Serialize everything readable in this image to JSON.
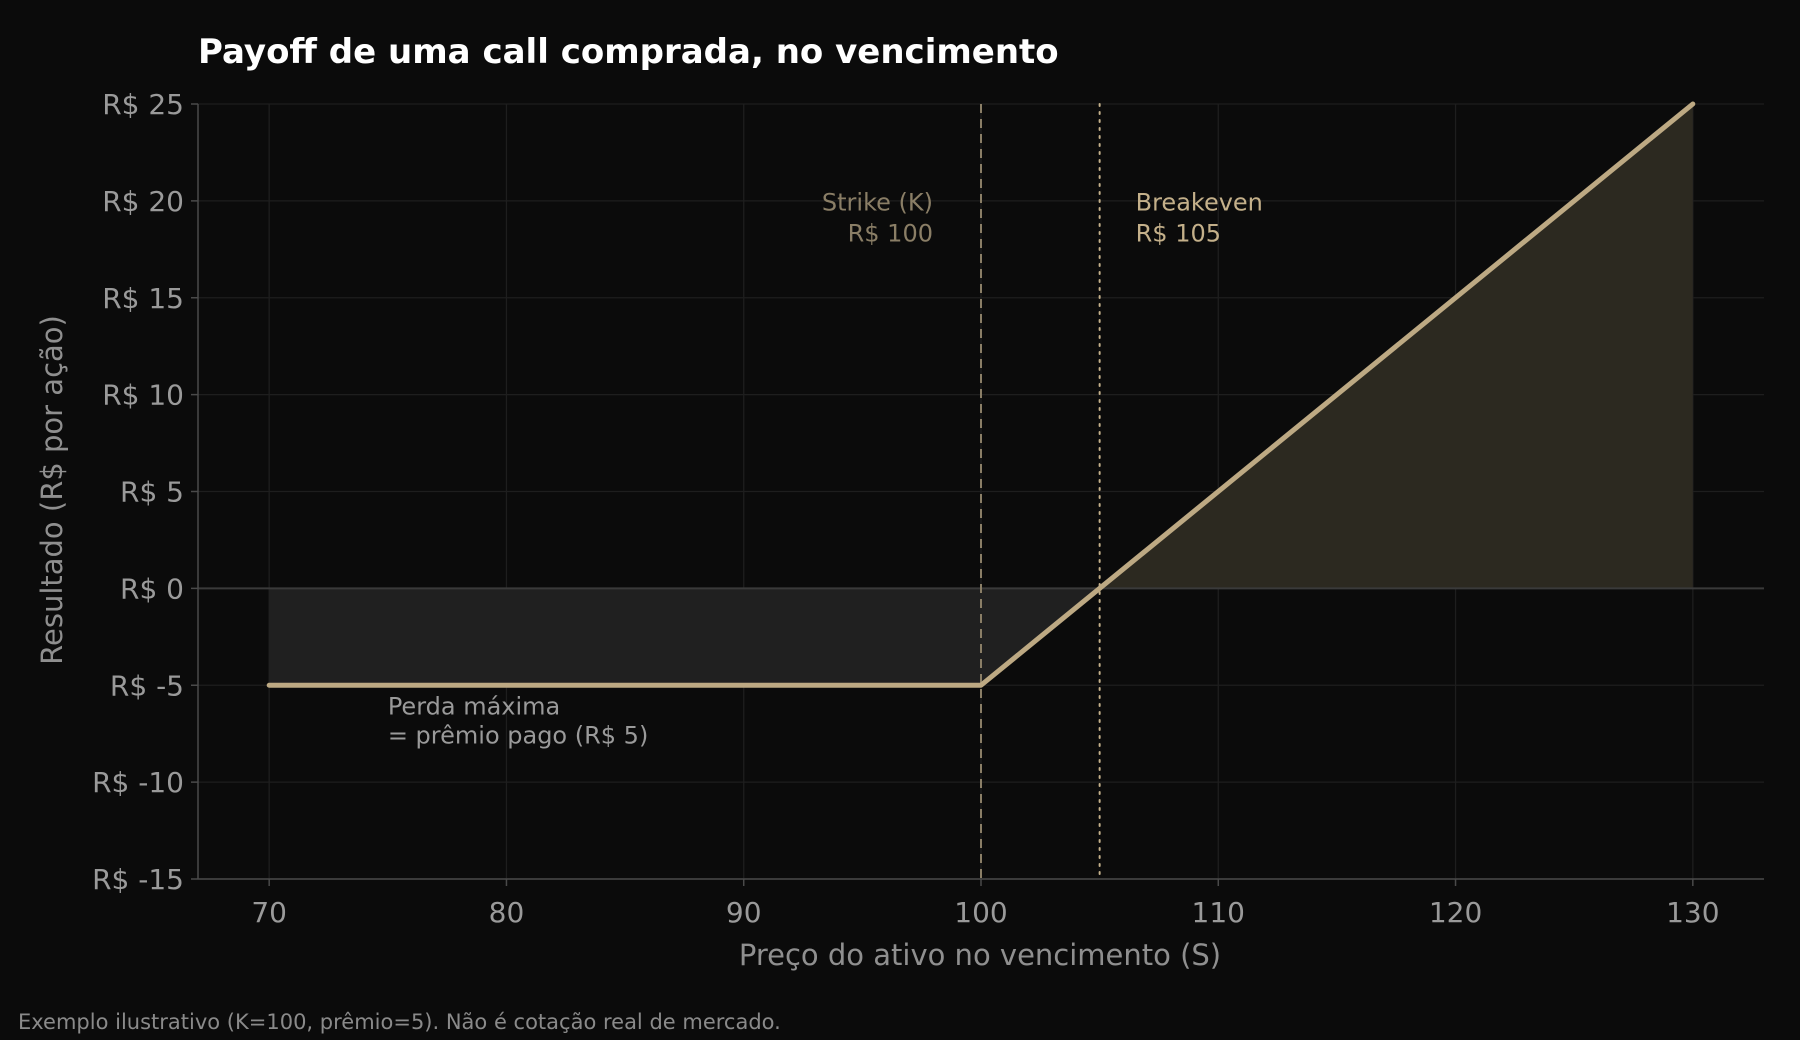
{
  "chart_data": {
    "type": "line",
    "title": "Payoff de uma call comprada, no vencimento",
    "xlabel": "Preço do ativo no vencimento (S)",
    "ylabel": "Resultado (R$ por ação)",
    "xlim": [
      67,
      133
    ],
    "ylim": [
      -15,
      25
    ],
    "x_ticks": [
      70,
      80,
      90,
      100,
      110,
      120,
      130
    ],
    "y_ticks": [
      -15,
      -10,
      -5,
      0,
      5,
      10,
      15,
      20,
      25
    ],
    "y_tick_labels": [
      "R$ -15",
      "R$ -10",
      "R$ -5",
      "R$ 0",
      "R$ 5",
      "R$ 10",
      "R$ 15",
      "R$ 20",
      "R$ 25"
    ],
    "grid": true,
    "series": [
      {
        "x": [
          70,
          100,
          130
        ],
        "y": [
          -5,
          -5,
          25
        ]
      }
    ],
    "strike": {
      "x": 100,
      "label_line1": "Strike (K)",
      "label_line2": "R$ 100"
    },
    "breakeven": {
      "x": 105,
      "label_line1": "Breakeven",
      "label_line2": "R$ 105"
    },
    "loss_annotation": {
      "line1": "Perda máxima",
      "line2": "= prêmio pago (R$ 5)"
    },
    "footnote": "Exemplo ilustrativo (K=100, prêmio=5). Não é cotação real de mercado.",
    "colors": {
      "background": "#0b0b0b",
      "payoff_line": "#bda983",
      "loss_fill": "#202020",
      "gain_fill": "#2c2920",
      "strike_line": "#8a7e66",
      "breakeven_line": "#c4b08a",
      "grid": "#1e1e1e",
      "zero_line": "#3a3a3a"
    }
  }
}
